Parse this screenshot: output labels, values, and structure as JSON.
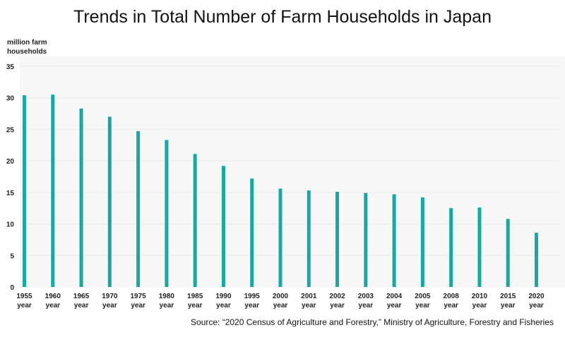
{
  "chart_data": {
    "type": "bar",
    "title": "Trends in Total Number of Farm Households in Japan",
    "ylabel_line1": "million farm",
    "ylabel_line2": "households",
    "categories": [
      "1955",
      "1960",
      "1965",
      "1970",
      "1975",
      "1980",
      "1985",
      "1990",
      "1995",
      "2000",
      "2001",
      "2002",
      "2003",
      "2004",
      "2005",
      "2008",
      "2010",
      "2015",
      "2020"
    ],
    "category_suffix": "year",
    "values": [
      30.4,
      30.5,
      28.3,
      27.0,
      24.7,
      23.3,
      21.1,
      19.2,
      17.2,
      15.6,
      15.3,
      15.1,
      14.9,
      14.7,
      14.2,
      12.5,
      12.6,
      10.8,
      8.6
    ],
    "ylim": [
      0,
      35
    ],
    "yticks": [
      0,
      5,
      10,
      15,
      20,
      25,
      30,
      35
    ],
    "grid": true,
    "bar_color": "#17a8a4",
    "source": "Source: “2020 Census of Agriculture and Forestry,” Ministry of Agriculture, Forestry and Fisheries"
  }
}
